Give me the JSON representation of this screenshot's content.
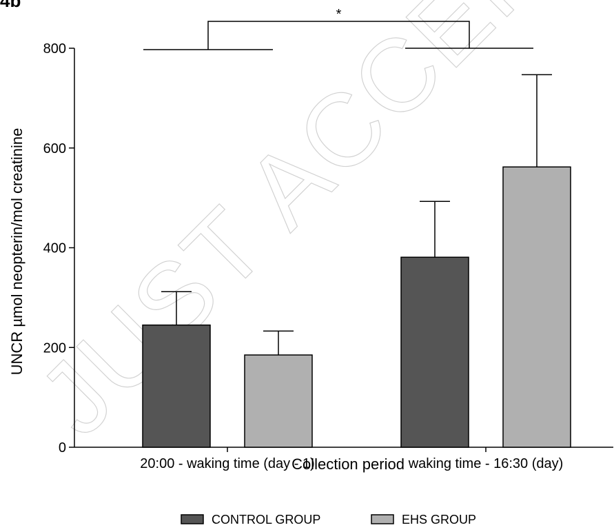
{
  "panel_label": "4b",
  "watermark": "JUST ACCEPTED",
  "chart_data": {
    "type": "bar",
    "title": "",
    "xlabel": "Collection period",
    "ylabel": "UNCR µmol neopterin/mol creatinine",
    "ylim": [
      0,
      800
    ],
    "yticks": [
      0,
      200,
      400,
      600,
      800
    ],
    "grid": false,
    "legend_position": "bottom",
    "categories": [
      "20:00 - waking time (day - 1)",
      "waking time - 16:30 (day)"
    ],
    "series": [
      {
        "name": "CONTROL GROUP",
        "color": "#555555",
        "values": [
          245,
          381
        ],
        "error": [
          67,
          112
        ]
      },
      {
        "name": "EHS GROUP",
        "color": "#b0b0b0",
        "values": [
          185,
          562
        ],
        "error": [
          48,
          185
        ]
      }
    ],
    "annotations": [
      {
        "text": "*",
        "type": "significance-bracket",
        "between": [
          "20:00 - waking time (day - 1)",
          "waking time - 16:30 (day)"
        ]
      }
    ]
  }
}
